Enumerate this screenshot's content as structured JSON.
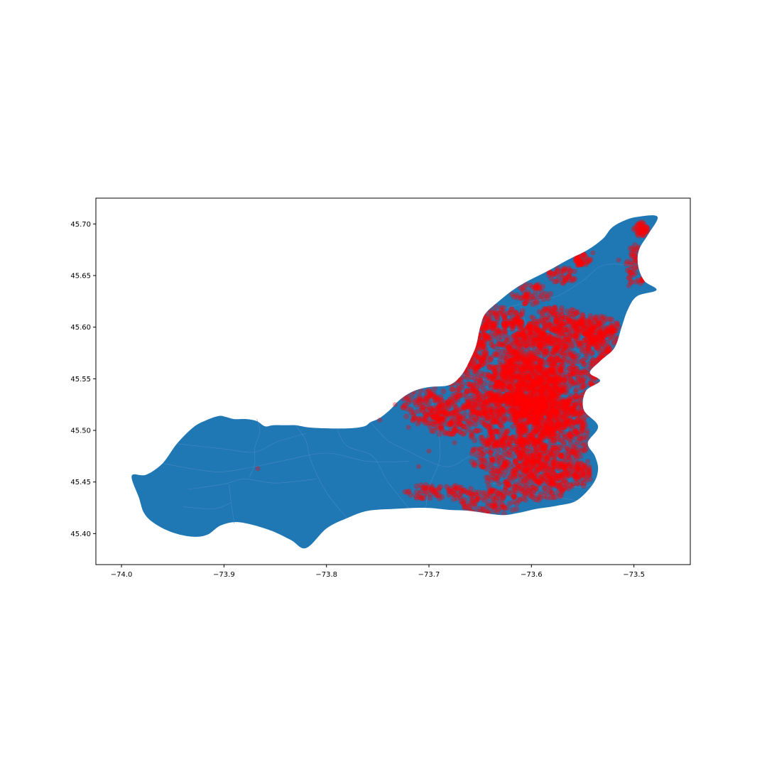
{
  "chart_data": {
    "type": "scatter",
    "map_fill_color": "#1f77b4",
    "point_color": "#ff0000",
    "xlim": [
      -74.025,
      -73.445
    ],
    "ylim": [
      45.37,
      45.725
    ],
    "x_ticks": [
      {
        "value": -74.0,
        "label": "−74.0"
      },
      {
        "value": -73.9,
        "label": "−73.9"
      },
      {
        "value": -73.8,
        "label": "−73.8"
      },
      {
        "value": -73.7,
        "label": "−73.7"
      },
      {
        "value": -73.6,
        "label": "−73.6"
      },
      {
        "value": -73.5,
        "label": "−73.5"
      }
    ],
    "y_ticks": [
      {
        "value": 45.4,
        "label": "45.40"
      },
      {
        "value": 45.45,
        "label": "45.45"
      },
      {
        "value": 45.5,
        "label": "45.50"
      },
      {
        "value": 45.55,
        "label": "45.55"
      },
      {
        "value": 45.6,
        "label": "45.60"
      },
      {
        "value": 45.65,
        "label": "45.65"
      },
      {
        "value": 45.7,
        "label": "45.70"
      }
    ],
    "island_outline": [
      [
        -73.976,
        45.457
      ],
      [
        -73.96,
        45.468
      ],
      [
        -73.946,
        45.487
      ],
      [
        -73.93,
        45.503
      ],
      [
        -73.917,
        45.51
      ],
      [
        -73.905,
        45.514
      ],
      [
        -73.898,
        45.513
      ],
      [
        -73.89,
        45.511
      ],
      [
        -73.878,
        45.511
      ],
      [
        -73.868,
        45.509
      ],
      [
        -73.86,
        45.504
      ],
      [
        -73.852,
        45.505
      ],
      [
        -73.84,
        45.505
      ],
      [
        -73.83,
        45.505
      ],
      [
        -73.818,
        45.503
      ],
      [
        -73.8,
        45.502
      ],
      [
        -73.778,
        45.502
      ],
      [
        -73.763,
        45.504
      ],
      [
        -73.757,
        45.508
      ],
      [
        -73.748,
        45.512
      ],
      [
        -73.738,
        45.52
      ],
      [
        -73.728,
        45.53
      ],
      [
        -73.715,
        45.538
      ],
      [
        -73.7,
        45.542
      ],
      [
        -73.68,
        45.544
      ],
      [
        -73.668,
        45.554
      ],
      [
        -73.66,
        45.568
      ],
      [
        -73.654,
        45.582
      ],
      [
        -73.65,
        45.6
      ],
      [
        -73.645,
        45.613
      ],
      [
        -73.632,
        45.625
      ],
      [
        -73.618,
        45.636
      ],
      [
        -73.603,
        45.645
      ],
      [
        -73.583,
        45.655
      ],
      [
        -73.565,
        45.665
      ],
      [
        -73.545,
        45.675
      ],
      [
        -73.53,
        45.686
      ],
      [
        -73.522,
        45.696
      ],
      [
        -73.51,
        45.703
      ],
      [
        -73.496,
        45.707
      ],
      [
        -73.477,
        45.707
      ],
      [
        -73.486,
        45.69
      ],
      [
        -73.495,
        45.675
      ],
      [
        -73.496,
        45.66
      ],
      [
        -73.49,
        45.645
      ],
      [
        -73.478,
        45.636
      ],
      [
        -73.497,
        45.63
      ],
      [
        -73.506,
        45.617
      ],
      [
        -73.512,
        45.6
      ],
      [
        -73.519,
        45.58
      ],
      [
        -73.532,
        45.568
      ],
      [
        -73.543,
        45.556
      ],
      [
        -73.533,
        45.548
      ],
      [
        -73.547,
        45.538
      ],
      [
        -73.549,
        45.52
      ],
      [
        -73.535,
        45.504
      ],
      [
        -73.545,
        45.488
      ],
      [
        -73.538,
        45.475
      ],
      [
        -73.535,
        45.462
      ],
      [
        -73.54,
        45.448
      ],
      [
        -73.556,
        45.432
      ],
      [
        -73.575,
        45.427
      ],
      [
        -73.595,
        45.424
      ],
      [
        -73.613,
        45.42
      ],
      [
        -73.63,
        45.418
      ],
      [
        -73.66,
        45.422
      ],
      [
        -73.68,
        45.423
      ],
      [
        -73.703,
        45.425
      ],
      [
        -73.733,
        45.424
      ],
      [
        -73.76,
        45.422
      ],
      [
        -73.78,
        45.415
      ],
      [
        -73.8,
        45.405
      ],
      [
        -73.82,
        45.386
      ],
      [
        -73.835,
        45.394
      ],
      [
        -73.857,
        45.404
      ],
      [
        -73.885,
        45.411
      ],
      [
        -73.903,
        45.408
      ],
      [
        -73.916,
        45.399
      ],
      [
        -73.93,
        45.397
      ],
      [
        -73.95,
        45.401
      ],
      [
        -73.968,
        45.41
      ],
      [
        -73.978,
        45.42
      ],
      [
        -73.983,
        45.435
      ],
      [
        -73.99,
        45.456
      ]
    ],
    "district_boundaries": [
      [
        [
          -73.96,
          45.468
        ],
        [
          -73.91,
          45.46
        ],
        [
          -73.88,
          45.463
        ],
        [
          -73.845,
          45.47
        ],
        [
          -73.8,
          45.478
        ],
        [
          -73.76,
          45.47
        ],
        [
          -73.72,
          45.47
        ]
      ],
      [
        [
          -73.945,
          45.487
        ],
        [
          -73.9,
          45.482
        ],
        [
          -73.87,
          45.479
        ],
        [
          -73.848,
          45.489
        ],
        [
          -73.82,
          45.497
        ]
      ],
      [
        [
          -73.935,
          45.443
        ],
        [
          -73.9,
          45.448
        ],
        [
          -73.88,
          45.453
        ],
        [
          -73.85,
          45.449
        ],
        [
          -73.81,
          45.453
        ]
      ],
      [
        [
          -73.94,
          45.426
        ],
        [
          -73.91,
          45.424
        ],
        [
          -73.893,
          45.43
        ]
      ],
      [
        [
          -73.895,
          45.448
        ],
        [
          -73.893,
          45.43
        ],
        [
          -73.89,
          45.41
        ]
      ],
      [
        [
          -73.868,
          45.511
        ],
        [
          -73.865,
          45.499
        ],
        [
          -73.87,
          45.483
        ],
        [
          -73.87,
          45.468
        ],
        [
          -73.875,
          45.455
        ]
      ],
      [
        [
          -73.83,
          45.505
        ],
        [
          -73.82,
          45.49
        ],
        [
          -73.815,
          45.47
        ],
        [
          -73.8,
          45.44
        ],
        [
          -73.78,
          45.415
        ]
      ],
      [
        [
          -73.79,
          45.502
        ],
        [
          -73.78,
          45.485
        ],
        [
          -73.755,
          45.475
        ],
        [
          -73.74,
          45.45
        ],
        [
          -73.72,
          45.425
        ]
      ],
      [
        [
          -73.757,
          45.508
        ],
        [
          -73.74,
          45.49
        ],
        [
          -73.72,
          45.48
        ],
        [
          -73.7,
          45.47
        ],
        [
          -73.68,
          45.465
        ],
        [
          -73.66,
          45.475
        ],
        [
          -73.63,
          45.49
        ]
      ],
      [
        [
          -73.7,
          45.542
        ],
        [
          -73.695,
          45.52
        ],
        [
          -73.69,
          45.495
        ],
        [
          -73.69,
          45.47
        ],
        [
          -73.7,
          45.445
        ],
        [
          -73.703,
          45.425
        ]
      ],
      [
        [
          -73.65,
          45.6
        ],
        [
          -73.62,
          45.598
        ],
        [
          -73.59,
          45.594
        ],
        [
          -73.56,
          45.588
        ],
        [
          -73.533,
          45.585
        ]
      ],
      [
        [
          -73.645,
          45.613
        ],
        [
          -73.62,
          45.62
        ],
        [
          -73.6,
          45.625
        ],
        [
          -73.575,
          45.63
        ],
        [
          -73.55,
          45.645
        ],
        [
          -73.53,
          45.66
        ],
        [
          -73.5,
          45.66
        ]
      ],
      [
        [
          -73.64,
          45.57
        ],
        [
          -73.61,
          45.565
        ],
        [
          -73.58,
          45.56
        ],
        [
          -73.555,
          45.555
        ],
        [
          -73.543,
          45.556
        ]
      ],
      [
        [
          -73.668,
          45.554
        ],
        [
          -73.64,
          45.548
        ],
        [
          -73.61,
          45.54
        ],
        [
          -73.58,
          45.53
        ],
        [
          -73.549,
          45.52
        ]
      ],
      [
        [
          -73.61,
          45.62
        ],
        [
          -73.605,
          45.6
        ],
        [
          -73.6,
          45.58
        ],
        [
          -73.598,
          45.56
        ]
      ],
      [
        [
          -73.635,
          45.48
        ],
        [
          -73.61,
          45.465
        ],
        [
          -73.58,
          45.452
        ],
        [
          -73.555,
          45.445
        ],
        [
          -73.54,
          45.448
        ]
      ],
      [
        [
          -73.64,
          45.45
        ],
        [
          -73.61,
          45.44
        ],
        [
          -73.58,
          45.436
        ],
        [
          -73.556,
          45.432
        ]
      ]
    ],
    "point_clusters": [
      {
        "x": -73.625,
        "y": 45.558,
        "rx": 0.06,
        "ry": 0.05
      },
      {
        "x": -73.575,
        "y": 45.56,
        "rx": 0.05,
        "ry": 0.06
      },
      {
        "x": -73.625,
        "y": 45.51,
        "rx": 0.055,
        "ry": 0.025
      },
      {
        "x": -73.66,
        "y": 45.59,
        "rx": 0.02,
        "ry": 0.035
      },
      {
        "x": -73.565,
        "y": 45.595,
        "rx": 0.045,
        "ry": 0.015
      },
      {
        "x": -73.58,
        "y": 45.49,
        "rx": 0.035,
        "ry": 0.045
      },
      {
        "x": -73.62,
        "y": 45.475,
        "rx": 0.04,
        "ry": 0.02
      },
      {
        "x": -73.6,
        "y": 45.452,
        "rx": 0.045,
        "ry": 0.02
      },
      {
        "x": -73.64,
        "y": 45.43,
        "rx": 0.03,
        "ry": 0.012
      },
      {
        "x": -73.69,
        "y": 45.44,
        "rx": 0.035,
        "ry": 0.008
      },
      {
        "x": -73.7,
        "y": 45.523,
        "rx": 0.028,
        "ry": 0.018
      },
      {
        "x": -73.685,
        "y": 45.51,
        "rx": 0.02,
        "ry": 0.015
      },
      {
        "x": -73.63,
        "y": 45.61,
        "rx": 0.025,
        "ry": 0.012
      },
      {
        "x": -73.6,
        "y": 45.632,
        "rx": 0.02,
        "ry": 0.01
      },
      {
        "x": -73.57,
        "y": 45.65,
        "rx": 0.015,
        "ry": 0.008
      },
      {
        "x": -73.55,
        "y": 45.665,
        "rx": 0.008,
        "ry": 0.006
      },
      {
        "x": -73.535,
        "y": 45.6,
        "rx": 0.02,
        "ry": 0.012
      },
      {
        "x": -73.525,
        "y": 45.585,
        "rx": 0.01,
        "ry": 0.012
      },
      {
        "x": -73.498,
        "y": 45.66,
        "rx": 0.01,
        "ry": 0.02
      },
      {
        "x": -73.493,
        "y": 45.695,
        "rx": 0.007,
        "ry": 0.007
      },
      {
        "x": -73.55,
        "y": 45.458,
        "rx": 0.008,
        "ry": 0.012
      },
      {
        "x": -73.61,
        "y": 45.543,
        "rx": 0.03,
        "ry": 0.03
      },
      {
        "x": -73.59,
        "y": 45.52,
        "rx": 0.03,
        "ry": 0.03
      }
    ],
    "scattered_points": [
      [
        -73.867,
        45.463
      ],
      [
        -73.748,
        45.51
      ],
      [
        -73.71,
        45.465
      ],
      [
        -73.7,
        45.48
      ],
      [
        -73.72,
        45.503
      ],
      [
        -73.733,
        45.525
      ],
      [
        -73.675,
        45.488
      ],
      [
        -73.56,
        45.565
      ],
      [
        -73.54,
        45.672
      ],
      [
        -73.555,
        45.66
      ],
      [
        -73.505,
        45.64
      ],
      [
        -73.515,
        45.665
      ],
      [
        -73.49,
        45.7
      ],
      [
        -73.5,
        45.675
      ],
      [
        -73.6,
        45.61
      ],
      [
        -73.585,
        45.63
      ],
      [
        -73.545,
        45.47
      ],
      [
        -73.555,
        45.448
      ],
      [
        -73.65,
        45.5
      ],
      [
        -73.63,
        45.595
      ]
    ]
  }
}
